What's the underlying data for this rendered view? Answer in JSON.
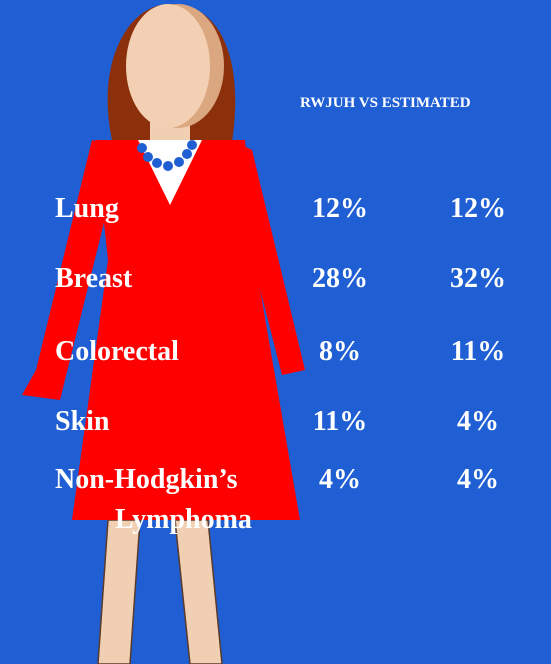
{
  "header": {
    "columns": "RWJUH  VS  ESTIMATED"
  },
  "table": {
    "rows": [
      [
        [
          "Lung"
        ],
        "12%",
        "12%"
      ],
      [
        [
          "Breast"
        ],
        "28%",
        "32%"
      ],
      [
        [
          "Colorectal"
        ],
        "8%",
        "11%"
      ],
      [
        [
          "Skin"
        ],
        "11%",
        "4%"
      ],
      [
        [
          "Non-Hodgkin’s",
          "Lymphoma"
        ],
        "4%",
        "4%"
      ]
    ]
  }
}
